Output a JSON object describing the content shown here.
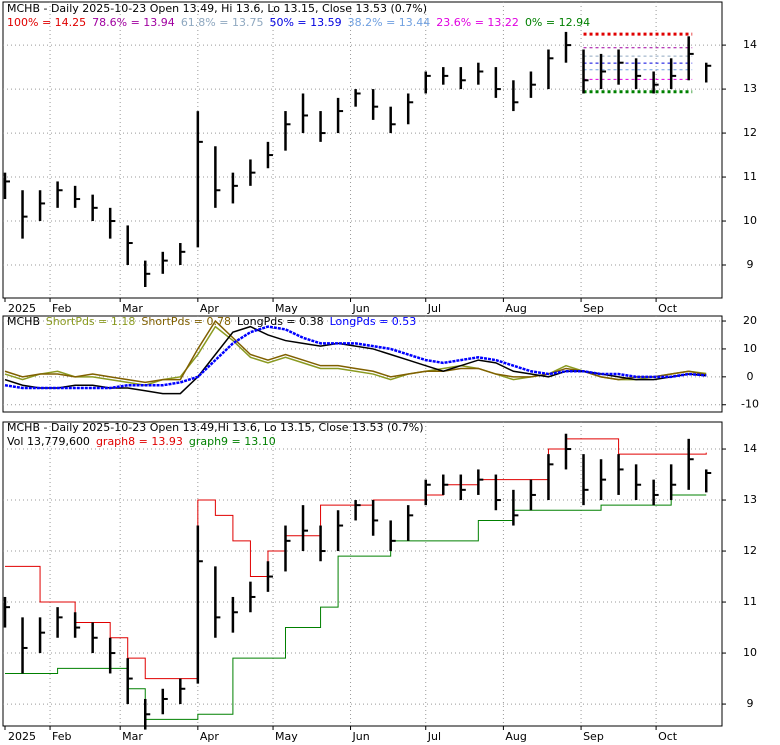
{
  "chart_data": [
    {
      "type": "hlc",
      "title": "MCHB - Daily 2025-10-23 Open 13.49, Hi 13.6, Lo 13.15, Close 13.53 (0.7%)",
      "x": [
        0,
        1,
        2,
        3,
        4,
        5,
        6,
        7,
        8,
        9,
        10,
        11,
        12,
        13,
        14,
        15,
        16,
        17,
        18,
        19,
        20,
        21,
        22,
        23,
        24,
        25,
        26,
        27,
        28,
        29,
        30,
        31,
        32,
        33,
        34,
        35,
        36,
        37,
        38,
        39,
        40
      ],
      "high": [
        11.1,
        10.7,
        10.7,
        10.9,
        10.8,
        10.6,
        10.3,
        9.9,
        9.1,
        9.3,
        9.5,
        12.5,
        11.7,
        11.1,
        11.4,
        11.8,
        12.5,
        12.9,
        12.5,
        12.8,
        13.0,
        13.0,
        12.6,
        12.9,
        13.4,
        13.5,
        13.5,
        13.6,
        13.5,
        13.2,
        13.4,
        13.9,
        14.3,
        13.9,
        13.8,
        13.9,
        13.7,
        13.4,
        13.7,
        14.2,
        13.6
      ],
      "low": [
        10.5,
        9.6,
        10.0,
        10.3,
        10.3,
        10.0,
        9.6,
        9.0,
        8.5,
        8.8,
        9.0,
        9.4,
        10.3,
        10.4,
        10.8,
        11.2,
        11.6,
        12.0,
        11.8,
        12.0,
        12.6,
        12.3,
        12.0,
        12.2,
        12.9,
        13.1,
        13.0,
        13.1,
        12.8,
        12.5,
        12.8,
        13.0,
        13.6,
        12.9,
        13.0,
        13.1,
        13.0,
        12.9,
        13.0,
        13.2,
        13.15
      ],
      "close": [
        10.9,
        10.1,
        10.4,
        10.7,
        10.5,
        10.3,
        10.0,
        9.5,
        8.8,
        9.1,
        9.3,
        11.8,
        10.7,
        10.8,
        11.1,
        11.5,
        12.2,
        12.4,
        12.0,
        12.5,
        12.9,
        12.6,
        12.2,
        12.7,
        13.3,
        13.3,
        13.2,
        13.4,
        13.0,
        12.7,
        13.1,
        13.7,
        14.0,
        13.2,
        13.4,
        13.6,
        13.3,
        13.1,
        13.3,
        13.8,
        13.53
      ],
      "color": "#000000",
      "xlim": [
        0,
        40.5
      ],
      "xticks": [
        {
          "value": 0,
          "label": "2025"
        },
        {
          "value": 2.57,
          "label": "Feb"
        },
        {
          "value": 6.57,
          "label": "Mar"
        },
        {
          "value": 11,
          "label": "Apr"
        },
        {
          "value": 15.29,
          "label": "May"
        },
        {
          "value": 19.71,
          "label": "Jun"
        },
        {
          "value": 24,
          "label": "Jul"
        },
        {
          "value": 28.43,
          "label": "Aug"
        },
        {
          "value": 32.86,
          "label": "Sep"
        },
        {
          "value": 37.14,
          "label": "Oct"
        }
      ],
      "ylim": [
        8.25,
        14.98
      ],
      "yticks": [
        9,
        10,
        11,
        12,
        13,
        14
      ],
      "grid": true,
      "fib_levels": [
        {
          "name": "100% = 14.25",
          "value": 14.25,
          "color": "#e00000"
        },
        {
          "name": "78.6% = 13.94",
          "value": 13.94,
          "color": "#a000a0"
        },
        {
          "name": "61.8% = 13.75",
          "value": 13.75,
          "color": "#8fa8c0"
        },
        {
          "name": "50% = 13.59",
          "value": 13.59,
          "color": "#0000e0"
        },
        {
          "name": "38.2% = 13.44",
          "value": 13.44,
          "color": "#70a0e0"
        },
        {
          "name": "23.6% = 13.22",
          "value": 13.22,
          "color": "#e000e0"
        },
        {
          "name": "0% = 12.94",
          "value": 12.94,
          "color": "#008000"
        }
      ]
    },
    {
      "type": "line",
      "title": "MCHB",
      "x": [
        0,
        1,
        2,
        3,
        4,
        5,
        6,
        7,
        8,
        9,
        10,
        11,
        12,
        13,
        14,
        15,
        16,
        17,
        18,
        19,
        20,
        21,
        22,
        23,
        24,
        25,
        26,
        27,
        28,
        29,
        30,
        31,
        32,
        33,
        34,
        35,
        36,
        37,
        38,
        39,
        40
      ],
      "series": [
        {
          "name": "ShortPds = 1.18",
          "color": "#8a9a20",
          "values": [
            1,
            -1,
            1,
            2,
            0,
            0,
            -1,
            -2,
            -3,
            -1,
            0,
            8,
            18,
            13,
            7,
            5,
            7,
            5,
            3,
            3,
            2,
            1,
            -1,
            1,
            2,
            3,
            4,
            3,
            1,
            -1,
            0,
            1,
            4,
            2,
            0,
            -1,
            -1,
            0,
            1,
            2,
            1.18
          ]
        },
        {
          "name": "ShortPds = 0.78",
          "color": "#806000",
          "values": [
            2,
            0,
            1,
            1,
            0,
            1,
            0,
            -1,
            -2,
            -1,
            -1,
            10,
            20,
            14,
            8,
            6,
            8,
            6,
            4,
            4,
            3,
            2,
            0,
            1,
            2,
            2,
            3,
            3,
            1,
            0,
            0,
            1,
            3,
            2,
            0,
            -1,
            0,
            0,
            1,
            2,
            0.78
          ]
        },
        {
          "name": "LongPds = 0.38",
          "color": "#000000",
          "values": [
            -1,
            -3,
            -4,
            -4,
            -3,
            -3,
            -4,
            -4,
            -5,
            -6,
            -6,
            0,
            8,
            16,
            18,
            15,
            13,
            12,
            11,
            12,
            11,
            10,
            8,
            6,
            4,
            2,
            4,
            6,
            5,
            2,
            1,
            0,
            2,
            2,
            1,
            0,
            -1,
            -1,
            0,
            1,
            0.38
          ]
        },
        {
          "name": "LongPds = 0.53",
          "color": "#0000ff",
          "values": [
            -3,
            -4,
            -4,
            -4,
            -4,
            -4,
            -4,
            -3,
            -3,
            -3,
            -2,
            0,
            6,
            12,
            16,
            18,
            17,
            14,
            12,
            12,
            12,
            11,
            10,
            8,
            6,
            5,
            6,
            7,
            6,
            4,
            2,
            1,
            2,
            2,
            1,
            1,
            0,
            0,
            0,
            1,
            0.53
          ]
        }
      ],
      "xlim": [
        0,
        40.5
      ],
      "ylim": [
        -12.6,
        21.8
      ],
      "yticks": [
        -10,
        0,
        10,
        20
      ],
      "grid": true
    },
    {
      "type": "hlc-bands",
      "title": "MCHB - Daily 2025-10-23 Open 13.49,Hi 13.6, Lo 13.15, Close 13.53 (0.7%)",
      "subtitle": "Vol 13,779,600",
      "x": [
        0,
        1,
        2,
        3,
        4,
        5,
        6,
        7,
        8,
        9,
        10,
        11,
        12,
        13,
        14,
        15,
        16,
        17,
        18,
        19,
        20,
        21,
        22,
        23,
        24,
        25,
        26,
        27,
        28,
        29,
        30,
        31,
        32,
        33,
        34,
        35,
        36,
        37,
        38,
        39,
        40
      ],
      "series": [
        {
          "name": "graph8 = 13.93",
          "color": "#e00000",
          "values": [
            11.7,
            11.7,
            11.0,
            11.0,
            10.6,
            10.6,
            10.3,
            9.9,
            9.5,
            9.5,
            9.5,
            13.0,
            12.7,
            12.2,
            11.5,
            12.0,
            12.3,
            12.3,
            12.9,
            12.9,
            12.9,
            13.0,
            13.0,
            13.0,
            13.1,
            13.3,
            13.3,
            13.4,
            13.4,
            13.4,
            13.4,
            14.0,
            14.2,
            14.2,
            14.2,
            13.9,
            13.9,
            13.9,
            13.9,
            13.9,
            13.93
          ]
        },
        {
          "name": "graph9 = 13.10",
          "color": "#008000",
          "values": [
            9.6,
            9.6,
            9.6,
            9.7,
            9.7,
            9.7,
            9.7,
            9.3,
            8.7,
            8.7,
            8.7,
            8.8,
            8.8,
            9.9,
            9.9,
            9.9,
            10.5,
            10.5,
            10.9,
            11.9,
            11.9,
            11.9,
            12.2,
            12.2,
            12.2,
            12.2,
            12.2,
            12.6,
            12.6,
            12.8,
            12.8,
            12.8,
            12.8,
            12.8,
            12.9,
            12.9,
            12.9,
            12.9,
            13.1,
            13.1,
            13.1
          ]
        }
      ],
      "xlim": [
        0,
        40.5
      ],
      "xticks": [
        {
          "value": 0,
          "label": "2025"
        },
        {
          "value": 2.57,
          "label": "Feb"
        },
        {
          "value": 6.57,
          "label": "Mar"
        },
        {
          "value": 11,
          "label": "Apr"
        },
        {
          "value": 15.29,
          "label": "May"
        },
        {
          "value": 19.71,
          "label": "Jun"
        },
        {
          "value": 24,
          "label": "Jul"
        },
        {
          "value": 28.43,
          "label": "Aug"
        },
        {
          "value": 32.86,
          "label": "Sep"
        },
        {
          "value": 37.14,
          "label": "Oct"
        }
      ],
      "ylim": [
        8.57,
        14.53
      ],
      "yticks": [
        9,
        10,
        11,
        12,
        13,
        14
      ],
      "grid": true
    }
  ]
}
